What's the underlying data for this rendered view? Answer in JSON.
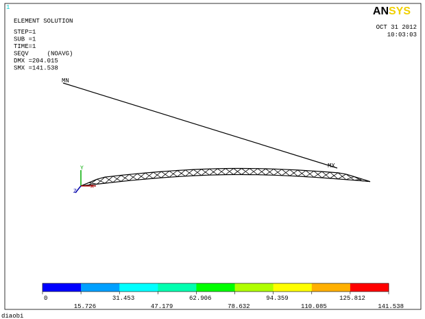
{
  "header": {
    "number": "1",
    "title": "ELEMENT SOLUTION",
    "lines": [
      "STEP=1",
      "SUB =1",
      "TIME=1",
      "SEQV     (NOAVG)",
      "DMX =204.015",
      "SMX =141.538"
    ]
  },
  "logo": {
    "left": "AN",
    "right": "SYS"
  },
  "date": "OCT 31 2012",
  "time": "10:03:03",
  "markers": {
    "min": "MN",
    "max": "MX"
  },
  "axes": {
    "y": "Y",
    "x": "X",
    "z": "Z"
  },
  "legend": {
    "colors": [
      "#0000ff",
      "#00a0ff",
      "#00ffff",
      "#00ffb0",
      "#00ff00",
      "#b0ff00",
      "#ffff00",
      "#ffb000",
      "#ff0000"
    ],
    "values": [
      0,
      15.726,
      31.453,
      47.179,
      62.906,
      78.632,
      94.359,
      110.085,
      125.812,
      141.538
    ]
  },
  "footer": "diaobi"
}
